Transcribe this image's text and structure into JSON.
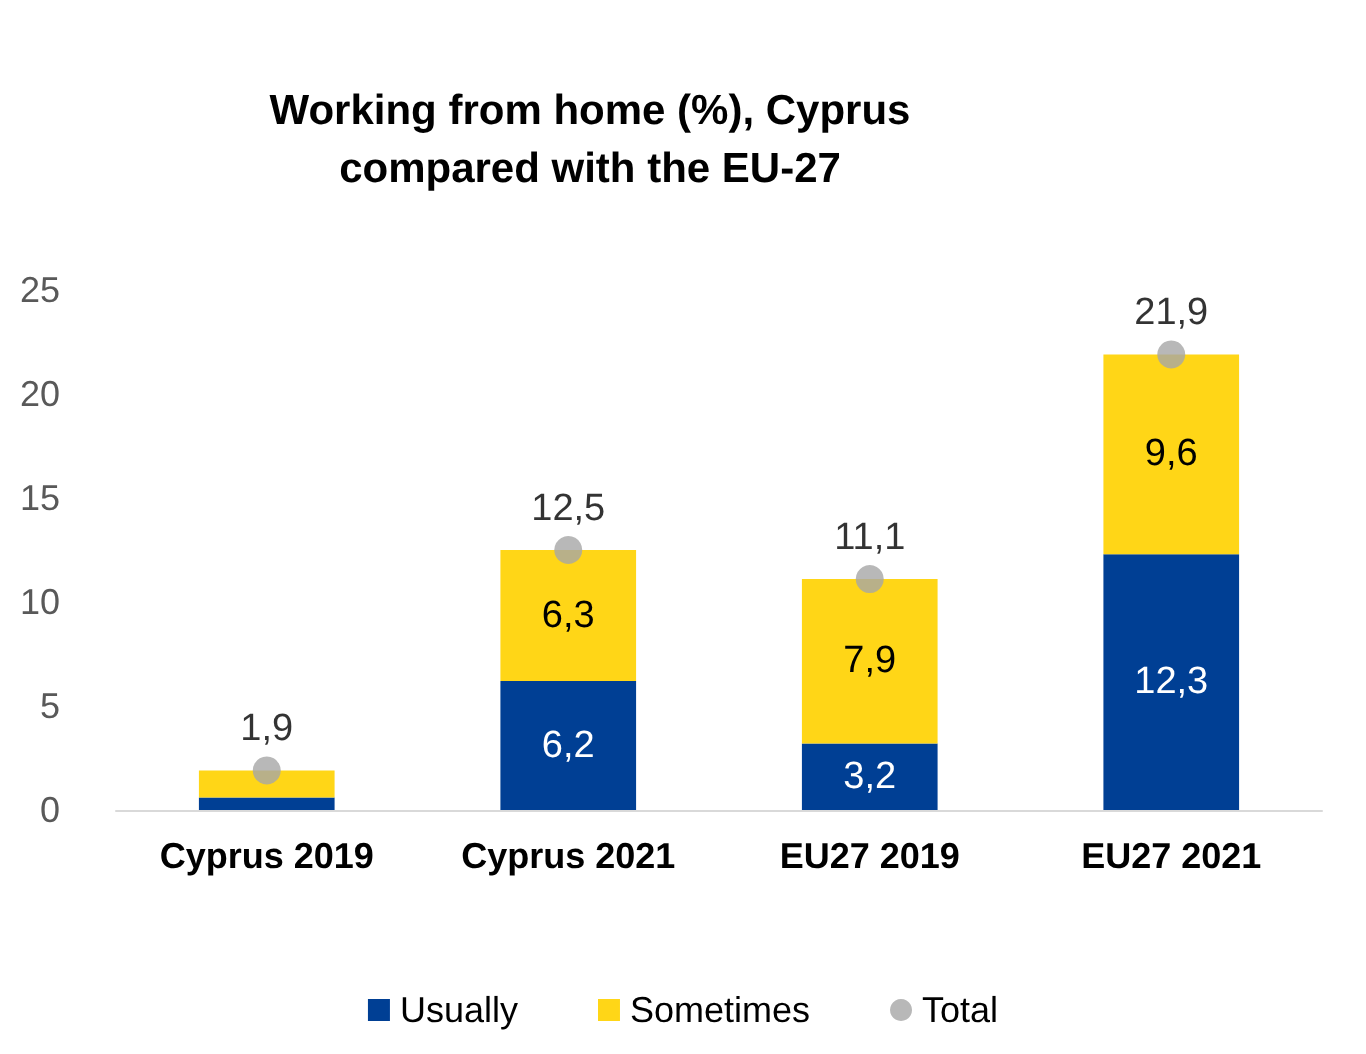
{
  "chart_data": {
    "type": "bar",
    "title": "Working from home (%), Cyprus\ncompared with the EU-27",
    "categories": [
      "Cyprus 2019",
      "Cyprus 2021",
      "EU27 2019",
      "EU27 2021"
    ],
    "stacked": true,
    "series": [
      {
        "name": "Usually",
        "color": "#003f94",
        "values": [
          0.6,
          6.2,
          3.2,
          12.3
        ],
        "value_labels": [
          null,
          "6,2",
          "3,2",
          "12,3"
        ]
      },
      {
        "name": "Sometimes",
        "color": "#ffd617",
        "values": [
          1.3,
          6.3,
          7.9,
          9.6
        ],
        "value_labels": [
          null,
          "6,3",
          "7,9",
          "9,6"
        ]
      },
      {
        "name": "Total",
        "type": "scatter",
        "color": "#a6a6a6",
        "x": [
          "Cyprus 2019",
          "Cyprus 2021",
          "EU27 2019",
          "EU27 2021"
        ],
        "values": [
          1.9,
          12.5,
          11.1,
          21.9
        ],
        "value_labels": [
          "1,9",
          "12,5",
          "11,1",
          "21,9"
        ]
      }
    ],
    "ylim": [
      0,
      25
    ],
    "yticks": [
      0,
      5,
      10,
      15,
      20,
      25
    ],
    "grid": false,
    "legend": "bottom",
    "marker": "circle"
  }
}
